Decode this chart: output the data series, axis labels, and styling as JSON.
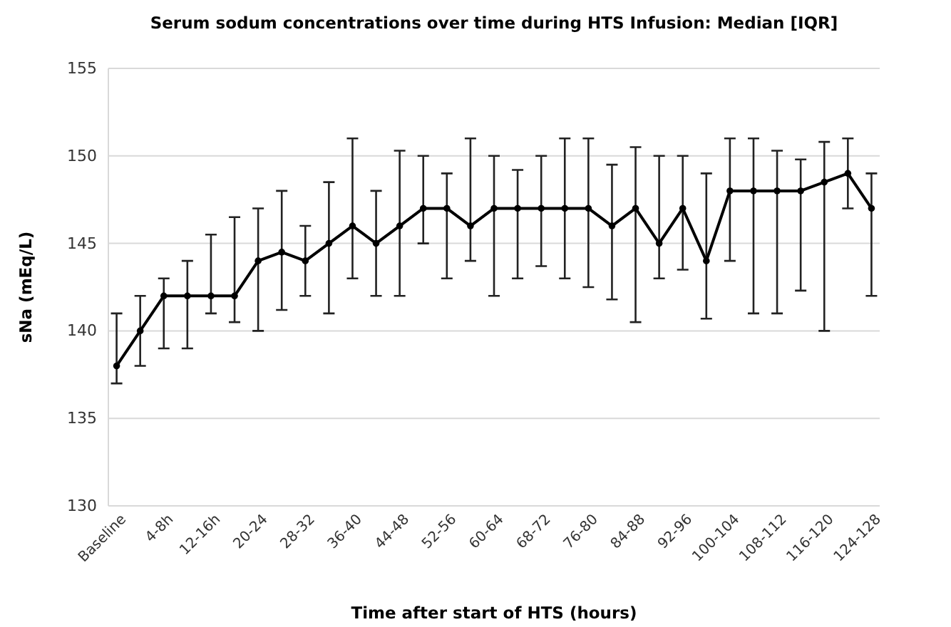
{
  "chart_data": {
    "type": "line",
    "title": "Serum sodum concentrations over time during HTS Infusion: Median [IQR]",
    "xlabel": "Time after start of HTS (hours)",
    "ylabel": "sNa (mEq/L)",
    "categories": [
      "Baseline",
      null,
      "4-8h",
      null,
      "12-16h",
      null,
      "20-24",
      null,
      "28-32",
      null,
      "36-40",
      null,
      "44-48",
      null,
      "52-56",
      null,
      "60-64",
      null,
      "68-72",
      null,
      "76-80",
      null,
      "84-88",
      null,
      "92-96",
      null,
      "100-104",
      null,
      "108-112",
      null,
      "116-120",
      null,
      "124-128"
    ],
    "series": [
      {
        "color": "#000000",
        "values": [
          138,
          140,
          142,
          142,
          142,
          142,
          144,
          144.5,
          144,
          145,
          146,
          145,
          146,
          147,
          147,
          146,
          147,
          147,
          147,
          147,
          147,
          146,
          147,
          145,
          147,
          144,
          148,
          148,
          148,
          148,
          148.5,
          149,
          147
        ],
        "errors": [
          [
            137,
            141
          ],
          [
            138,
            142
          ],
          [
            139,
            143
          ],
          [
            139,
            144
          ],
          [
            141,
            145.5
          ],
          [
            140.5,
            146.5
          ],
          [
            140,
            147
          ],
          [
            141.2,
            148
          ],
          [
            142,
            146
          ],
          [
            141,
            148.5
          ],
          [
            143,
            151
          ],
          [
            142,
            148
          ],
          [
            142,
            150.3
          ],
          [
            145,
            150
          ],
          [
            143,
            149
          ],
          [
            144,
            151
          ],
          [
            142,
            150
          ],
          [
            143,
            149.2
          ],
          [
            143.7,
            150
          ],
          [
            143,
            151
          ],
          [
            142.5,
            151
          ],
          [
            141.8,
            149.5
          ],
          [
            140.5,
            150.5
          ],
          [
            143,
            150
          ],
          [
            143.5,
            150
          ],
          [
            140.7,
            149
          ],
          [
            144,
            151
          ],
          [
            141,
            151
          ],
          [
            141,
            150.3
          ],
          [
            142.3,
            149.8
          ],
          [
            140,
            150.8
          ],
          [
            147,
            151
          ],
          [
            142,
            149
          ]
        ]
      }
    ],
    "ylim": [
      130,
      155
    ],
    "yticks": [
      130,
      135,
      140,
      145,
      150,
      155
    ],
    "grid": "y",
    "marker": "circle",
    "line_style": "solid"
  }
}
